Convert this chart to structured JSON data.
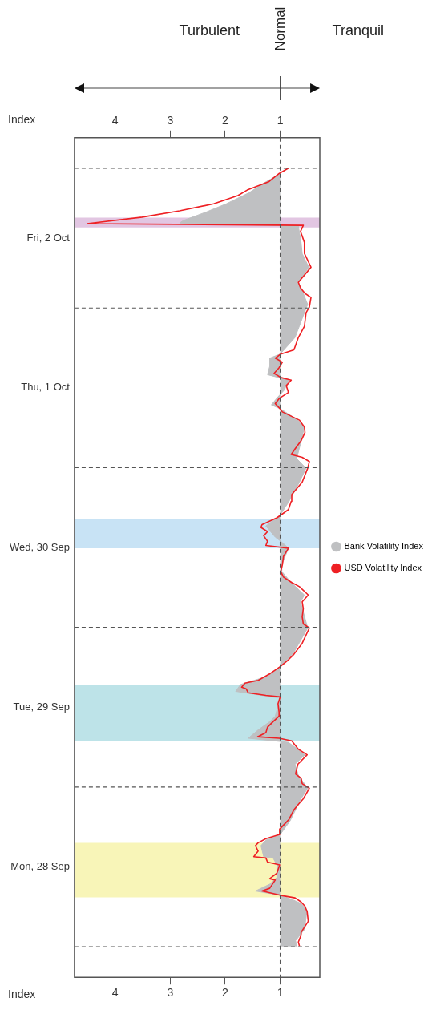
{
  "chart_data": {
    "type": "line",
    "orientation": "horizontal",
    "xlabel": "Index",
    "x2label": "Index",
    "annotations": [
      "Turbulent",
      "Normal",
      "Tranquil"
    ],
    "ylim": [
      "--09-27T19:24",
      "--10-03T01:36"
    ],
    "yticks": [
      {
        "value": "--09-28T12:00",
        "label": "Mon, 28 Sep"
      },
      {
        "value": "--09-29T12:00",
        "label": "Tue, 29 Sep"
      },
      {
        "value": "--09-30T12:00",
        "label": "Wed, 30 Sep"
      },
      {
        "value": "--10-01T12:00",
        "label": "Thu, 1 Oct"
      },
      {
        "value": "--10-02T10:30",
        "label": "Fri, 2 Oct"
      }
    ],
    "xlim": [
      4.74,
      0.28
    ],
    "xticks": [
      1,
      2,
      3,
      4
    ],
    "x2lim": [
      4.74,
      0.28
    ],
    "x2ticks": [
      1,
      2,
      3,
      4
    ],
    "grid": false,
    "legend": "right",
    "marker": "none",
    "ref_lines": [
      {
        "axis": "x",
        "value": 1,
        "line_style": "dashed",
        "color": "#555555"
      },
      {
        "axis": "y",
        "value": "--09-28T00:00",
        "line_style": "dashed",
        "color": "#555555"
      },
      {
        "axis": "y",
        "value": "--09-29T00:00",
        "line_style": "dashed",
        "color": "#555555"
      },
      {
        "axis": "y",
        "value": "--09-30T00:00",
        "line_style": "dashed",
        "color": "#555555"
      },
      {
        "axis": "y",
        "value": "--10-01T00:00",
        "line_style": "dashed",
        "color": "#555555"
      },
      {
        "axis": "y",
        "value": "--10-02T00:00",
        "line_style": "dashed",
        "color": "#555555"
      },
      {
        "axis": "y",
        "value": "--10-02T21:00",
        "line_style": "dashed",
        "color": "#555555"
      }
    ],
    "bands": [
      {
        "axis": "y",
        "from": "--09-28T07:24",
        "to": "--09-28T15:36",
        "color": "#f8f5b8"
      },
      {
        "axis": "y",
        "from": "--09-29T06:54",
        "to": "--09-29T15:18",
        "color": "#bde3e8"
      },
      {
        "axis": "y",
        "from": "--09-30T11:54",
        "to": "--09-30T16:18",
        "color": "#c8e3f5"
      },
      {
        "axis": "y",
        "from": "--10-02T12:06",
        "to": "--10-02T13:36",
        "color": "#e2c6e2"
      }
    ],
    "series": [
      {
        "name": "Bank Volatility Index",
        "type": "area",
        "color": "#bfc0c2",
        "x": [
          "--09-28T00:06",
          "--09-28T00:06",
          "--09-28T00:54",
          "--09-28T02:34",
          "--09-28T05:28",
          "--09-28T06:30",
          "--09-28T07:07",
          "--09-28T07:44",
          "--09-28T08:22",
          "--09-28T09:24",
          "--09-28T10:26",
          "--09-28T12:18",
          "--09-28T13:20",
          "--09-28T13:32",
          "--09-28T15:11",
          "--09-28T16:01",
          "--09-28T16:51",
          "--09-28T18:55",
          "--09-28T22:14",
          "--09-28T23:49",
          "--09-29T01:45",
          "--09-29T03:25",
          "--09-29T04:51",
          "--09-29T06:43",
          "--09-29T07:20",
          "--09-29T08:35",
          "--09-29T09:49",
          "--09-29T10:39",
          "--09-29T13:21",
          "--09-29T14:23",
          "--09-29T15:25",
          "--09-29T16:39",
          "--09-29T18:06",
          "--09-29T19:58",
          "--09-29T23:54",
          "--09-30T03:50",
          "--09-30T04:52",
          "--09-30T06:44",
          "--09-30T08:23",
          "--09-30T09:25",
          "--09-30T11:54",
          "--09-30T12:57",
          "--09-30T13:34",
          "--09-30T15:13",
          "--09-30T16:52",
          "--09-30T18:56",
          "--09-30T21:50",
          "--09-30T23:55",
          "--10-01T01:22",
          "--10-01T03:38",
          "--10-01T06:07",
          "--10-01T07:09",
          "--10-01T08:49",
          "--10-01T09:26",
          "--10-01T10:28",
          "--10-01T11:43",
          "--10-01T13:10",
          "--10-01T13:59",
          "--10-01T15:14",
          "--10-01T16:28",
          "--10-01T17:05",
          "--10-01T19:34",
          "--10-01T23:18",
          "--10-02T00:32",
          "--10-02T02:37",
          "--10-02T03:52",
          "--10-02T06:08",
          "--10-02T08:12",
          "--10-02T09:52",
          "--10-02T12:20",
          "--10-02T12:46",
          "--10-02T13:10",
          "--10-02T14:25",
          "--10-02T15:40",
          "--10-02T17:19",
          "--10-02T18:58",
          "--10-02T20:13"
        ],
        "values": [
          1.0,
          0.7,
          0.72,
          0.56,
          0.51,
          0.62,
          0.79,
          1.0,
          1.45,
          1.19,
          1.06,
          1.06,
          1.13,
          1.3,
          1.35,
          1.26,
          1.0,
          0.82,
          0.62,
          0.5,
          0.67,
          0.73,
          0.55,
          0.85,
          1.58,
          1.4,
          1.19,
          1.09,
          1.0,
          1.81,
          1.72,
          1.23,
          1.0,
          0.77,
          0.5,
          0.63,
          0.56,
          0.8,
          0.97,
          0.97,
          0.85,
          0.99,
          1.09,
          1.26,
          1.0,
          0.84,
          0.65,
          0.53,
          0.7,
          0.63,
          0.56,
          0.68,
          0.99,
          1.16,
          1.06,
          0.92,
          0.85,
          1.23,
          1.19,
          1.19,
          1.0,
          0.73,
          0.56,
          0.5,
          0.6,
          0.67,
          0.48,
          0.6,
          0.62,
          0.67,
          2.83,
          2.76,
          2.35,
          1.98,
          1.57,
          1.26,
          1.0
        ]
      },
      {
        "name": "USD Volatility Index",
        "type": "line",
        "color": "#ee2024",
        "x": [
          "--09-28T00:06",
          "--09-28T00:42",
          "--09-28T01:44",
          "--09-28T02:09",
          "--09-28T03:49",
          "--09-28T05:15",
          "--09-28T06:05",
          "--09-28T06:43",
          "--09-28T07:20",
          "--09-28T07:44",
          "--09-28T08:22",
          "--09-28T08:47",
          "--09-28T10:01",
          "--09-28T10:13",
          "--09-28T11:03",
          "--09-28T12:18",
          "--09-28T12:43",
          "--09-28T13:20",
          "--09-28T13:32",
          "--09-28T14:22",
          "--09-28T15:11",
          "--09-28T15:37",
          "--09-28T16:14",
          "--09-28T16:51",
          "--09-28T17:40",
          "--09-28T19:08",
          "--09-28T20:35",
          "--09-28T21:24",
          "--09-28T22:14",
          "--09-28T23:49",
          "--09-29T00:30",
          "--09-29T01:20",
          "--09-29T01:58",
          "--09-29T03:25",
          "--09-29T04:51",
          "--09-29T05:41",
          "--09-29T06:56",
          "--09-29T07:20",
          "--09-29T07:33",
          "--09-29T08:10",
          "--09-29T09:00",
          "--09-29T09:49",
          "--09-29T10:39",
          "--09-29T11:16",
          "--09-29T12:31",
          "--09-29T13:33",
          "--09-29T13:46",
          "--09-29T14:10",
          "--09-29T14:47",
          "--09-29T15:00",
          "--09-29T15:37",
          "--09-29T16:02",
          "--09-29T17:04",
          "--09-29T18:06",
          "--09-29T19:08",
          "--09-29T19:58",
          "--09-29T21:37",
          "--09-29T23:54",
          "--09-30T00:32",
          "--09-30T01:34",
          "--09-30T02:48",
          "--09-30T03:50",
          "--09-30T04:52",
          "--09-30T06:07",
          "--09-30T06:44",
          "--09-30T07:34",
          "--09-30T08:23",
          "--09-30T09:25",
          "--09-30T10:40",
          "--09-30T11:54",
          "--09-30T12:19",
          "--09-30T12:57",
          "--09-30T13:46",
          "--09-30T14:23",
          "--09-30T15:01",
          "--09-30T15:26",
          "--09-30T16:28",
          "--09-30T17:42",
          "--09-30T18:56",
          "--09-30T19:58",
          "--09-30T21:50",
          "--09-30T23:55",
          "--10-01T00:56",
          "--10-01T01:34",
          "--10-01T01:59",
          "--10-01T02:49",
          "--10-01T04:03",
          "--10-01T05:17",
          "--10-01T06:07",
          "--10-01T07:09",
          "--10-01T08:23",
          "--10-01T09:01",
          "--10-01T09:38",
          "--10-01T10:28",
          "--10-01T11:18",
          "--10-01T12:20",
          "--10-01T13:10",
          "--10-01T13:34",
          "--10-01T14:11",
          "--10-01T15:02",
          "--10-01T15:51",
          "--10-01T16:28",
          "--10-01T17:05",
          "--10-01T17:43",
          "--10-01T19:34",
          "--10-01T21:14",
          "--10-01T23:18",
          "--10-02T00:08",
          "--10-02T01:35",
          "--10-02T02:12",
          "--10-02T03:01",
          "--10-02T03:52",
          "--10-02T06:08",
          "--10-02T08:12",
          "--10-02T09:52",
          "--10-02T11:31",
          "--10-02T12:26",
          "--10-02T12:41",
          "--10-02T13:40",
          "--10-02T14:37",
          "--10-02T15:40",
          "--10-02T16:54",
          "--10-02T17:44",
          "--10-02T18:58",
          "--10-02T20:13",
          "--10-02T21:02"
        ],
        "values": [
          0.65,
          0.67,
          0.62,
          0.62,
          0.49,
          0.51,
          0.55,
          0.62,
          0.73,
          1.0,
          1.33,
          1.19,
          1.09,
          1.19,
          1.06,
          1.01,
          1.23,
          1.26,
          1.48,
          1.4,
          1.45,
          1.4,
          1.26,
          1.02,
          1.01,
          0.84,
          0.75,
          0.67,
          0.58,
          0.47,
          0.6,
          0.62,
          0.72,
          0.68,
          0.51,
          0.67,
          0.79,
          1.02,
          1.41,
          1.26,
          1.23,
          1.13,
          1.02,
          1.02,
          1.04,
          1.0,
          1.26,
          1.58,
          1.62,
          1.7,
          1.64,
          1.4,
          1.18,
          1.0,
          0.85,
          0.75,
          0.6,
          0.47,
          0.58,
          0.6,
          0.58,
          0.6,
          0.49,
          0.65,
          0.79,
          0.94,
          0.99,
          0.96,
          0.94,
          0.85,
          1.26,
          1.23,
          1.3,
          1.23,
          1.35,
          1.33,
          1.06,
          0.85,
          0.8,
          0.79,
          0.6,
          0.5,
          0.47,
          0.6,
          0.8,
          0.73,
          0.62,
          0.55,
          0.56,
          0.65,
          0.96,
          1.02,
          1.09,
          1.01,
          0.85,
          0.89,
          0.8,
          0.99,
          1.11,
          1.02,
          0.96,
          1.09,
          0.99,
          0.75,
          0.67,
          0.56,
          0.53,
          0.47,
          0.44,
          0.55,
          0.63,
          0.67,
          0.44,
          0.56,
          0.56,
          0.63,
          0.58,
          4.51,
          3.51,
          2.83,
          2.21,
          1.77,
          1.6,
          1.21,
          1.02,
          0.85
        ]
      }
    ]
  }
}
